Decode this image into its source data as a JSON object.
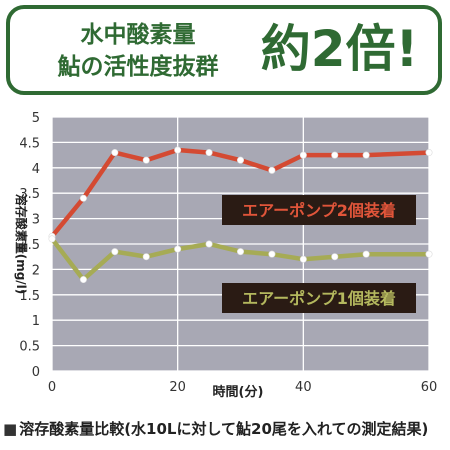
{
  "banner": {
    "line1": "水中酸素量",
    "line2": "鮎の活性度抜群",
    "highlight": "約2倍!"
  },
  "caption": {
    "marker": "■",
    "text": "溶存酸素量比較(水10Lに対して鮎20尾を入れての測定結果)"
  },
  "colors": {
    "banner_green": "#2f6a33",
    "plot_background": "#a8a8b4",
    "series_two_pumps": "#d44a32",
    "series_one_pump": "#a6ab55",
    "label_box": "#2a1b14"
  },
  "chart_data": {
    "type": "line",
    "xlabel": "時間(分)",
    "ylabel": "溶存酸素量(mg/l)",
    "xlim": [
      0,
      60
    ],
    "ylim": [
      0,
      5
    ],
    "x_ticks": [
      0,
      20,
      40,
      60
    ],
    "y_ticks": [
      0,
      0.5,
      1,
      1.5,
      2,
      2.5,
      3,
      3.5,
      4,
      4.5,
      5
    ],
    "grid": true,
    "series": [
      {
        "name": "エアーポンプ2個装着",
        "x": [
          0,
          5,
          10,
          15,
          20,
          25,
          30,
          35,
          40,
          45,
          50,
          60
        ],
        "y": [
          2.65,
          3.4,
          4.3,
          4.15,
          4.35,
          4.3,
          4.15,
          3.95,
          4.25,
          4.25,
          4.25,
          4.3
        ]
      },
      {
        "name": "エアーポンプ1個装着",
        "x": [
          0,
          5,
          10,
          15,
          20,
          25,
          30,
          35,
          40,
          45,
          50,
          60
        ],
        "y": [
          2.6,
          1.8,
          2.35,
          2.25,
          2.4,
          2.5,
          2.35,
          2.3,
          2.2,
          2.25,
          2.3,
          2.3
        ]
      }
    ]
  }
}
